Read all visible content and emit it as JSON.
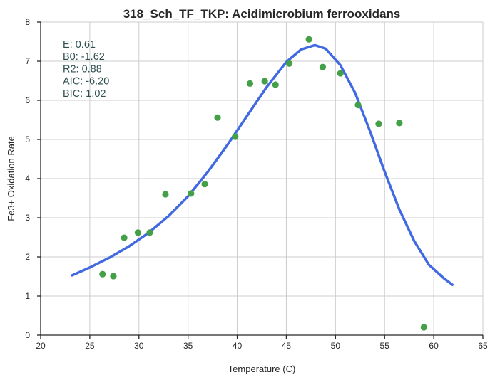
{
  "chart_data": {
    "type": "scatter",
    "title": "318_Sch_TF_TKP: Acidimicrobium ferrooxidans",
    "xlabel": "Temperature (C)",
    "ylabel": "Fe3+ Oxidation Rate",
    "xlim": [
      20,
      65
    ],
    "ylim": [
      0,
      8
    ],
    "xticks": [
      "20",
      "25",
      "30",
      "35",
      "40",
      "45",
      "50",
      "55",
      "60",
      "65"
    ],
    "yticks": [
      "0",
      "1",
      "2",
      "3",
      "4",
      "5",
      "6",
      "7",
      "8"
    ],
    "grid": true,
    "annotations": [
      "E:  0.61",
      "B0:  -1.62",
      "R2:  0.88",
      "AIC: -6.20",
      "BIC: 1.02"
    ],
    "series": [
      {
        "kind": "points",
        "color": "#43a047",
        "points": [
          [
            26.3,
            1.56
          ],
          [
            27.4,
            1.51
          ],
          [
            28.5,
            2.49
          ],
          [
            29.9,
            2.62
          ],
          [
            31.1,
            2.62
          ],
          [
            32.7,
            3.6
          ],
          [
            35.3,
            3.62
          ],
          [
            36.7,
            3.86
          ],
          [
            38.0,
            5.56
          ],
          [
            39.8,
            5.07
          ],
          [
            41.3,
            6.43
          ],
          [
            42.8,
            6.49
          ],
          [
            43.9,
            6.4
          ],
          [
            45.3,
            6.94
          ],
          [
            47.3,
            7.56
          ],
          [
            48.7,
            6.85
          ],
          [
            50.5,
            6.69
          ],
          [
            52.3,
            5.88
          ],
          [
            54.4,
            5.4
          ],
          [
            56.5,
            5.42
          ],
          [
            59.0,
            0.2
          ]
        ]
      },
      {
        "kind": "curve",
        "color": "#4169e1",
        "points": [
          [
            23.2,
            1.53
          ],
          [
            25.0,
            1.73
          ],
          [
            27.0,
            1.98
          ],
          [
            29.0,
            2.27
          ],
          [
            31.0,
            2.62
          ],
          [
            33.0,
            3.04
          ],
          [
            35.0,
            3.55
          ],
          [
            37.0,
            4.17
          ],
          [
            39.0,
            4.86
          ],
          [
            41.0,
            5.6
          ],
          [
            43.0,
            6.34
          ],
          [
            45.0,
            6.98
          ],
          [
            46.5,
            7.3
          ],
          [
            47.9,
            7.41
          ],
          [
            49.0,
            7.32
          ],
          [
            50.5,
            6.9
          ],
          [
            52.0,
            6.19
          ],
          [
            53.5,
            5.22
          ],
          [
            55.0,
            4.18
          ],
          [
            56.5,
            3.21
          ],
          [
            58.0,
            2.41
          ],
          [
            59.5,
            1.8
          ],
          [
            61.0,
            1.46
          ],
          [
            61.9,
            1.29
          ]
        ]
      }
    ]
  }
}
